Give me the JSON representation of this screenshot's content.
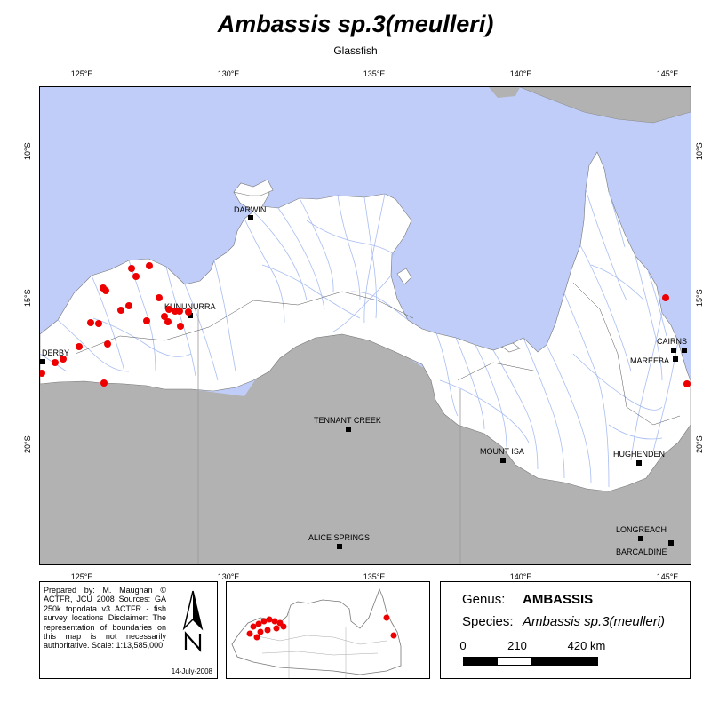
{
  "title": "Ambassis sp.3(meulleri)",
  "subtitle": "Glassfish",
  "lon_ticks": [
    "125°E",
    "130°E",
    "135°E",
    "140°E",
    "145°E"
  ],
  "lat_ticks": [
    "10°S",
    "15°S",
    "20°S"
  ],
  "towns": [
    {
      "name": "DARWIN"
    },
    {
      "name": "KUNUNURRA"
    },
    {
      "name": "DERBY"
    },
    {
      "name": "TENNANT CREEK"
    },
    {
      "name": "ALICE SPRINGS"
    },
    {
      "name": "MOUNT ISA"
    },
    {
      "name": "CAIRNS"
    },
    {
      "name": "MAREEBA"
    },
    {
      "name": "HUGHENDEN"
    },
    {
      "name": "LONGREACH"
    },
    {
      "name": "BARCALDINE"
    }
  ],
  "colors": {
    "sea": "#bfcdf8",
    "land_in_region": "#ffffff",
    "land_outside": "#b2b2b2",
    "rivers": "#a8bdf2",
    "occurrence": "#ee0000"
  },
  "credits": {
    "text": "Prepared by: M. Maughan © ACTFR, JCU 2008 Sources: GA 250k topodata v3 ACTFR - fish survey locations Disclaimer: The representation of boundaries on this map is not necessarily authoritative. Scale: 1:13,585,000",
    "date": "14-July-2008"
  },
  "legend": {
    "genus_label": "Genus:",
    "genus_value": "AMBASSIS",
    "species_label": "Species:",
    "species_value": "Ambassis sp.3(meulleri)",
    "scale_labels": [
      "0",
      "210",
      "420 km"
    ]
  },
  "north_arrow": "north-arrow-icon"
}
